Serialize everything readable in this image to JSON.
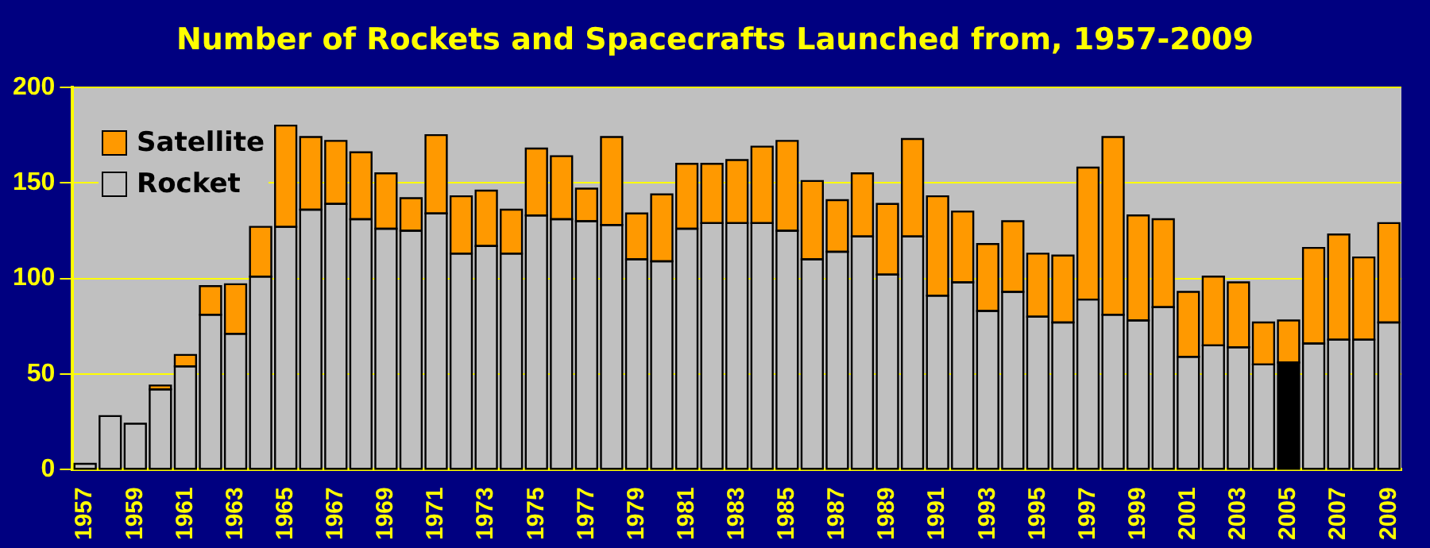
{
  "chart_data": {
    "type": "bar",
    "title": "Number of Rockets and Spacecrafts Launched from, 1957-2009",
    "categories": [
      "1957",
      null,
      "1959",
      null,
      "1961",
      null,
      "1963",
      null,
      "1965",
      null,
      "1967",
      null,
      "1969",
      null,
      "1971",
      null,
      "1973",
      null,
      "1975",
      null,
      "1977",
      null,
      "1979",
      null,
      "1981",
      null,
      "1983",
      null,
      "1985",
      null,
      "1987",
      null,
      "1989",
      null,
      "1991",
      null,
      "1993",
      null,
      "1995",
      null,
      "1997",
      null,
      "1999",
      null,
      "2001",
      null,
      "2003",
      null,
      "2005",
      null,
      "2007",
      null,
      "2009"
    ],
    "stacked": true,
    "series": [
      {
        "name": "Rocket",
        "color": "#c0c0c0",
        "colors": [
          "#c0c0c0",
          "#c0c0c0",
          "#c0c0c0",
          "#c0c0c0",
          "#c0c0c0",
          "#c0c0c0",
          "#c0c0c0",
          "#c0c0c0",
          "#c0c0c0",
          "#c0c0c0",
          "#c0c0c0",
          "#c0c0c0",
          "#c0c0c0",
          "#c0c0c0",
          "#c0c0c0",
          "#c0c0c0",
          "#c0c0c0",
          "#c0c0c0",
          "#c0c0c0",
          "#c0c0c0",
          "#c0c0c0",
          "#c0c0c0",
          "#c0c0c0",
          "#c0c0c0",
          "#c0c0c0",
          "#c0c0c0",
          "#c0c0c0",
          "#c0c0c0",
          "#c0c0c0",
          "#c0c0c0",
          "#c0c0c0",
          "#c0c0c0",
          "#c0c0c0",
          "#c0c0c0",
          "#c0c0c0",
          "#c0c0c0",
          "#c0c0c0",
          "#c0c0c0",
          "#c0c0c0",
          "#c0c0c0",
          "#c0c0c0",
          "#c0c0c0",
          "#c0c0c0",
          "#c0c0c0",
          "#c0c0c0",
          "#c0c0c0",
          "#c0c0c0",
          "#c0c0c0",
          "#000000",
          "#c0c0c0",
          "#c0c0c0",
          "#c0c0c0",
          "#c0c0c0"
        ],
        "values": [
          3,
          28,
          24,
          42,
          54,
          81,
          71,
          101,
          127,
          136,
          139,
          131,
          126,
          125,
          134,
          113,
          117,
          113,
          133,
          131,
          130,
          128,
          110,
          109,
          126,
          129,
          129,
          129,
          125,
          110,
          114,
          122,
          102,
          122,
          91,
          98,
          83,
          93,
          80,
          77,
          89,
          81,
          78,
          85,
          59,
          65,
          64,
          55,
          56,
          66,
          68,
          68,
          77
        ]
      },
      {
        "name": "Satellite",
        "color": "#ff9900",
        "values": [
          0,
          0,
          0,
          2,
          6,
          15,
          26,
          26,
          53,
          38,
          33,
          35,
          29,
          17,
          41,
          30,
          29,
          23,
          35,
          33,
          17,
          46,
          24,
          35,
          34,
          31,
          33,
          40,
          47,
          41,
          27,
          33,
          37,
          51,
          52,
          37,
          35,
          37,
          33,
          35,
          69,
          93,
          55,
          46,
          34,
          36,
          34,
          22,
          22,
          50,
          55,
          43,
          52
        ]
      }
    ],
    "ylim": [
      0,
      200
    ],
    "yticks": [
      0,
      50,
      100,
      150,
      200
    ],
    "grid": "y",
    "legend": "top left"
  }
}
